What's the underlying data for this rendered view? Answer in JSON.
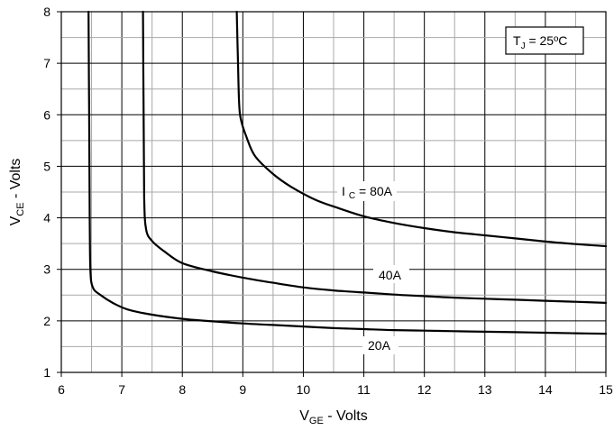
{
  "chart_data": {
    "type": "line",
    "xlabel": {
      "main": "V",
      "sub": "GE",
      "rest": " - Volts"
    },
    "ylabel": {
      "main": "V",
      "sub": "CE",
      "rest": " - Volts"
    },
    "xlim": [
      6,
      15
    ],
    "ylim": [
      1,
      8
    ],
    "xticks": [
      "6",
      "7",
      "8",
      "9",
      "10",
      "11",
      "12",
      "13",
      "14",
      "15"
    ],
    "yticks": [
      "1",
      "2",
      "3",
      "4",
      "5",
      "6",
      "7",
      "8"
    ],
    "grid": true,
    "annotation": {
      "main": "T",
      "sub": "J",
      "rest": " = 25ºC"
    },
    "series": [
      {
        "name": "I C = 80A",
        "label_parts": {
          "a": "I",
          "sub": "C",
          "b": " = 80A"
        },
        "points": [
          [
            8.9,
            8.0
          ],
          [
            8.92,
            7.0
          ],
          [
            8.94,
            6.2
          ],
          [
            8.97,
            5.9
          ],
          [
            9.05,
            5.6
          ],
          [
            9.2,
            5.2
          ],
          [
            9.5,
            4.85
          ],
          [
            9.8,
            4.6
          ],
          [
            10.2,
            4.35
          ],
          [
            10.6,
            4.18
          ],
          [
            11.0,
            4.03
          ],
          [
            11.5,
            3.9
          ],
          [
            12.0,
            3.8
          ],
          [
            12.5,
            3.72
          ],
          [
            13.0,
            3.66
          ],
          [
            13.5,
            3.6
          ],
          [
            14.0,
            3.54
          ],
          [
            14.5,
            3.49
          ],
          [
            15.0,
            3.45
          ]
        ]
      },
      {
        "name": "40A",
        "points": [
          [
            7.35,
            8.0
          ],
          [
            7.36,
            6.0
          ],
          [
            7.37,
            4.4
          ],
          [
            7.4,
            3.78
          ],
          [
            7.5,
            3.55
          ],
          [
            7.7,
            3.35
          ],
          [
            8.0,
            3.12
          ],
          [
            8.5,
            2.96
          ],
          [
            9.0,
            2.84
          ],
          [
            9.5,
            2.74
          ],
          [
            10.0,
            2.65
          ],
          [
            10.5,
            2.59
          ],
          [
            11.0,
            2.55
          ],
          [
            11.5,
            2.51
          ],
          [
            12.0,
            2.48
          ],
          [
            12.5,
            2.45
          ],
          [
            13.0,
            2.43
          ],
          [
            13.5,
            2.41
          ],
          [
            14.0,
            2.39
          ],
          [
            14.5,
            2.37
          ],
          [
            15.0,
            2.35
          ]
        ]
      },
      {
        "name": "20A",
        "points": [
          [
            6.45,
            8.0
          ],
          [
            6.46,
            6.0
          ],
          [
            6.47,
            4.0
          ],
          [
            6.48,
            3.0
          ],
          [
            6.52,
            2.65
          ],
          [
            6.65,
            2.5
          ],
          [
            6.85,
            2.35
          ],
          [
            7.1,
            2.22
          ],
          [
            7.5,
            2.12
          ],
          [
            8.0,
            2.04
          ],
          [
            8.5,
            1.99
          ],
          [
            9.0,
            1.95
          ],
          [
            9.5,
            1.92
          ],
          [
            10.0,
            1.89
          ],
          [
            10.5,
            1.86
          ],
          [
            11.0,
            1.84
          ],
          [
            11.5,
            1.82
          ],
          [
            12.0,
            1.81
          ],
          [
            12.5,
            1.8
          ],
          [
            13.0,
            1.79
          ],
          [
            13.5,
            1.78
          ],
          [
            14.0,
            1.77
          ],
          [
            14.5,
            1.76
          ],
          [
            15.0,
            1.75
          ]
        ]
      }
    ]
  }
}
